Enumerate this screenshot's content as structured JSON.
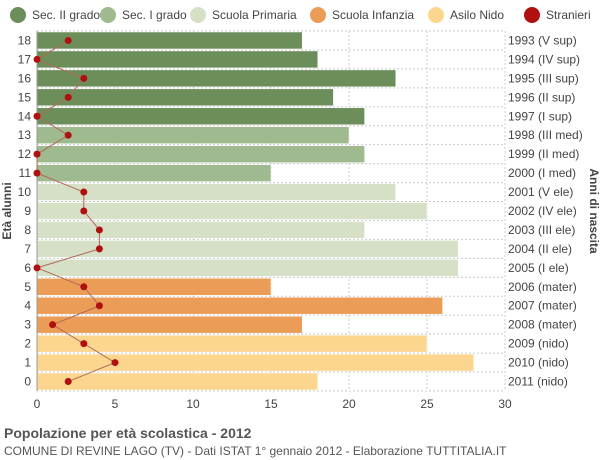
{
  "chart_data": {
    "type": "bar",
    "orientation": "horizontal",
    "xlabel": "",
    "ylabel": "Età alunni",
    "y2label": "Anni di nascita",
    "xlim": [
      0,
      30
    ],
    "xticks": [
      0,
      5,
      10,
      15,
      20,
      25,
      30
    ],
    "grid": true,
    "legend_position": "top",
    "legend": [
      {
        "label": "Sec. II grado",
        "color": "#6b8e5a",
        "kind": "bar"
      },
      {
        "label": "Sec. I grado",
        "color": "#9fba8e",
        "kind": "bar"
      },
      {
        "label": "Scuola Primaria",
        "color": "#d5e0c6",
        "kind": "bar"
      },
      {
        "label": "Scuola Infanzia",
        "color": "#eb9c56",
        "kind": "bar"
      },
      {
        "label": "Asilo Nido",
        "color": "#fcd68e",
        "kind": "bar"
      },
      {
        "label": "Stranieri",
        "color": "#b01010",
        "kind": "dot"
      }
    ],
    "ages": [
      18,
      17,
      16,
      15,
      14,
      13,
      12,
      11,
      10,
      9,
      8,
      7,
      6,
      5,
      4,
      3,
      2,
      1,
      0
    ],
    "birth_labels": [
      "1993 (V sup)",
      "1994 (IV sup)",
      "1995 (III sup)",
      "1996 (II sup)",
      "1997 (I sup)",
      "1998 (III med)",
      "1999 (II med)",
      "2000 (I med)",
      "2001 (V ele)",
      "2002 (IV ele)",
      "2003 (III ele)",
      "2004 (II ele)",
      "2005 (I ele)",
      "2006 (mater)",
      "2007 (mater)",
      "2008 (mater)",
      "2009 (nido)",
      "2010 (nido)",
      "2011 (nido)"
    ],
    "values": [
      17,
      18,
      23,
      19,
      21,
      20,
      21,
      15,
      23,
      25,
      21,
      27,
      27,
      15,
      26,
      17,
      25,
      28,
      18
    ],
    "categories": [
      "Sec. II grado",
      "Sec. II grado",
      "Sec. II grado",
      "Sec. II grado",
      "Sec. II grado",
      "Sec. I grado",
      "Sec. I grado",
      "Sec. I grado",
      "Scuola Primaria",
      "Scuola Primaria",
      "Scuola Primaria",
      "Scuola Primaria",
      "Scuola Primaria",
      "Scuola Infanzia",
      "Scuola Infanzia",
      "Scuola Infanzia",
      "Asilo Nido",
      "Asilo Nido",
      "Asilo Nido"
    ],
    "stranieri": [
      2,
      0,
      3,
      2,
      0,
      2,
      0,
      0,
      3,
      3,
      4,
      4,
      0,
      3,
      4,
      1,
      3,
      5,
      2
    ]
  },
  "caption": {
    "title": "Popolazione per età scolastica - 2012",
    "subtitle": "COMUNE DI REVINE LAGO (TV) - Dati ISTAT 1° gennaio 2012 - Elaborazione TUTTITALIA.IT"
  }
}
